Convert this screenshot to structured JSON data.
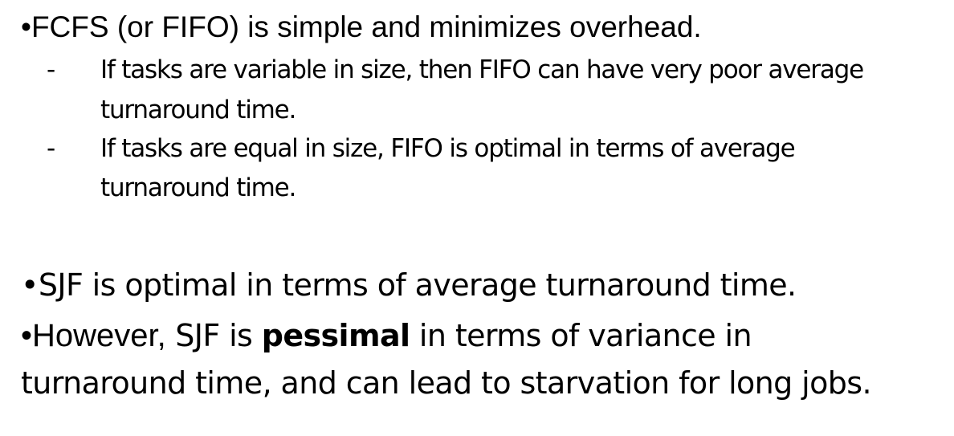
{
  "slide": {
    "bullet1": {
      "text": "•FCFS (or FIFO) is simple and minimizes overhead.",
      "subpoints": [
        {
          "dash": "-",
          "line1": "If tasks are variable in size, then FIFO can have very poor average",
          "line2": "turnaround time."
        },
        {
          "dash": "-",
          "line1": "If tasks are equal in size, FIFO is optimal in terms of average",
          "line2": "turnaround time."
        }
      ]
    },
    "bullet2": {
      "text": "•SJF is optimal in terms of average turnaround time."
    },
    "bullet3": {
      "prefix": "•However,",
      "part1": " SJF is ",
      "bold": "pessimal",
      "part2": " in terms of variance in",
      "line2": "turnaround time, and can lead to starvation for long jobs."
    }
  }
}
